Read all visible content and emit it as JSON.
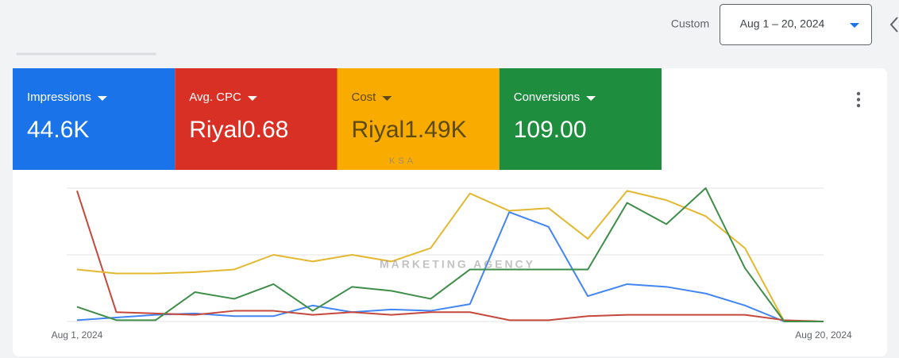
{
  "header": {
    "range_label": "Custom",
    "date_range": "Aug 1 – 20, 2024"
  },
  "watermark": {
    "top": "KSA",
    "bottom": "MARKETING AGENCY"
  },
  "chart_data": {
    "type": "line",
    "categories": [
      "Aug 1, 2024",
      null,
      null,
      null,
      null,
      null,
      null,
      null,
      null,
      null,
      null,
      null,
      null,
      null,
      null,
      null,
      null,
      null,
      null,
      "Aug 20, 2024"
    ],
    "ylim": [
      0,
      100
    ],
    "yticks": [
      0,
      50,
      100
    ],
    "grid": true,
    "series": [
      {
        "name": "Impressions",
        "total": "44.6K",
        "color": "#4285f4",
        "tile_color": "#1a73e8",
        "values": [
          1,
          3,
          5,
          6,
          4,
          4,
          12,
          7,
          9,
          8,
          13,
          82,
          71,
          19,
          28,
          26,
          21,
          12,
          0,
          0
        ]
      },
      {
        "name": "Avg. CPC",
        "total": "Riyal0.68",
        "color": "#c5483b",
        "tile_color": "#d93025",
        "values": [
          98,
          7,
          6,
          5,
          8,
          8,
          5,
          7,
          5,
          7,
          7,
          1,
          1,
          4,
          5,
          5,
          5,
          5,
          1,
          0
        ]
      },
      {
        "name": "Cost",
        "total": "Riyal1.49K",
        "color": "#e3b830",
        "tile_color": "#f9ab00",
        "values": [
          39,
          36,
          36,
          37,
          39,
          50,
          45,
          50,
          45,
          55,
          96,
          83,
          85,
          62,
          98,
          91,
          79,
          55,
          0,
          0
        ]
      },
      {
        "name": "Conversions",
        "total": "109.00",
        "color": "#3e8e4a",
        "tile_color": "#1e8e3e",
        "values": [
          11,
          1,
          1,
          22,
          17,
          28,
          8,
          26,
          23,
          17,
          39,
          39,
          39,
          39,
          89,
          73,
          100,
          40,
          0,
          0
        ]
      }
    ]
  }
}
